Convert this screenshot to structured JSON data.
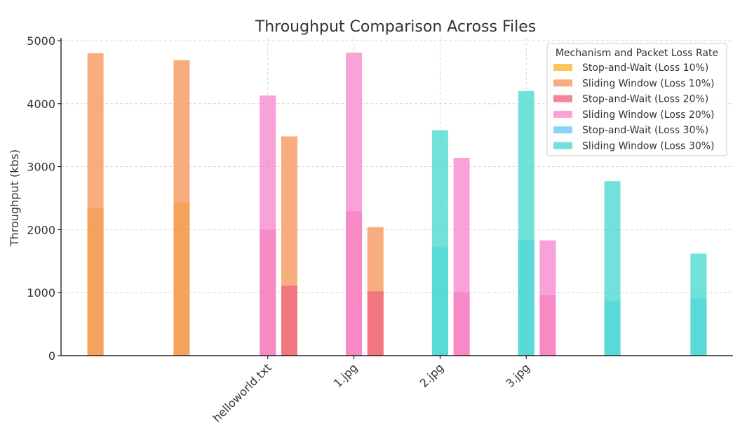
{
  "chart_data": {
    "type": "bar",
    "title": "Throughput Comparison Across Files",
    "xlabel": "",
    "ylabel": "Throughput (kbs)",
    "ylim": [
      0,
      5000
    ],
    "yticks": [
      0,
      1000,
      2000,
      3000,
      4000,
      5000
    ],
    "grid": true,
    "legend_title": "Mechanism and Packet Loss Rate",
    "legend_position": "top-right",
    "x_tick_labels": [
      {
        "label": "helloworld.txt",
        "x": 2.5
      },
      {
        "label": "1.jpg",
        "x": 3.5
      },
      {
        "label": "2.jpg",
        "x": 4.5
      },
      {
        "label": "3.jpg",
        "x": 5.5
      }
    ],
    "series": [
      {
        "name": "Stop-and-Wait (Loss 10%)",
        "color": "#F7B733",
        "bars": [
          {
            "x": 0.5,
            "value": 2340
          },
          {
            "x": 1.5,
            "value": 2430
          }
        ]
      },
      {
        "name": "Sliding Window (Loss 10%)",
        "color": "#F5985E",
        "bars": [
          {
            "x": 0.5,
            "value": 4800
          },
          {
            "x": 1.5,
            "value": 4690
          },
          {
            "x": 2.75,
            "value": 3480
          },
          {
            "x": 3.75,
            "value": 2040
          }
        ]
      },
      {
        "name": "Stop-and-Wait (Loss 20%)",
        "color": "#F06882",
        "bars": [
          {
            "x": 2.5,
            "value": 2000
          },
          {
            "x": 2.75,
            "value": 1110
          },
          {
            "x": 3.5,
            "value": 2290
          },
          {
            "x": 3.75,
            "value": 1020
          },
          {
            "x": 4.75,
            "value": 1010
          },
          {
            "x": 5.75,
            "value": 960
          }
        ]
      },
      {
        "name": "Sliding Window (Loss 20%)",
        "color": "#F78BD0",
        "bars": [
          {
            "x": 2.5,
            "value": 4130
          },
          {
            "x": 3.5,
            "value": 4810
          },
          {
            "x": 4.75,
            "value": 3140
          },
          {
            "x": 5.75,
            "value": 1830
          }
        ]
      },
      {
        "name": "Stop-and-Wait (Loss 30%)",
        "color": "#66CCF5",
        "bars": [
          {
            "x": 4.5,
            "value": 1720
          },
          {
            "x": 5.5,
            "value": 1840
          },
          {
            "x": 6.5,
            "value": 870
          },
          {
            "x": 7.5,
            "value": 910
          }
        ]
      },
      {
        "name": "Sliding Window (Loss 30%)",
        "color": "#4DD9D0",
        "bars": [
          {
            "x": 4.5,
            "value": 3580
          },
          {
            "x": 5.5,
            "value": 4200
          },
          {
            "x": 6.5,
            "value": 2770
          },
          {
            "x": 7.5,
            "value": 1620
          }
        ]
      }
    ]
  }
}
